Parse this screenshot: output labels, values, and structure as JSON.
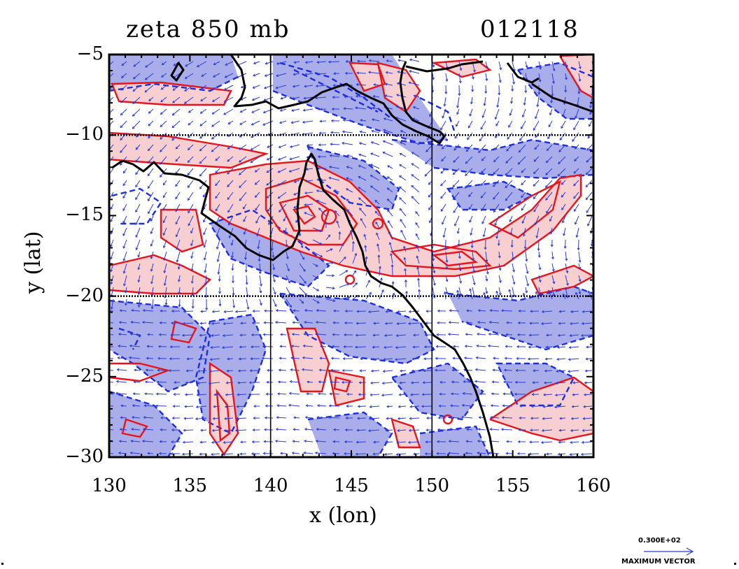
{
  "title_left": "zeta 850 mb",
  "title_right": "012118",
  "xlabel": "x (lon)",
  "ylabel": "y (lat)",
  "xticks": [
    "130",
    "135",
    "140",
    "145",
    "150",
    "155",
    "160"
  ],
  "yticks": [
    "−5",
    "−10",
    "−15",
    "−20",
    "−25",
    "−30"
  ],
  "reference_vector": {
    "value": "0.300E+02",
    "caption": "MAXIMUM VECTOR"
  },
  "colors": {
    "positive_contour": "#e8141c",
    "positive_fill": "#f8cfd0",
    "negative_contour": "#1c2ee0",
    "negative_fill": "#a9aeea",
    "vectors": "#2a3bd8",
    "coast": "#000000"
  },
  "map": {
    "lon_range": [
      130,
      160
    ],
    "lat_range": [
      -30,
      -5
    ],
    "gridlines_lon": [
      140,
      150
    ],
    "gridlines_lat": [
      -10,
      -20
    ],
    "grid": true
  }
}
